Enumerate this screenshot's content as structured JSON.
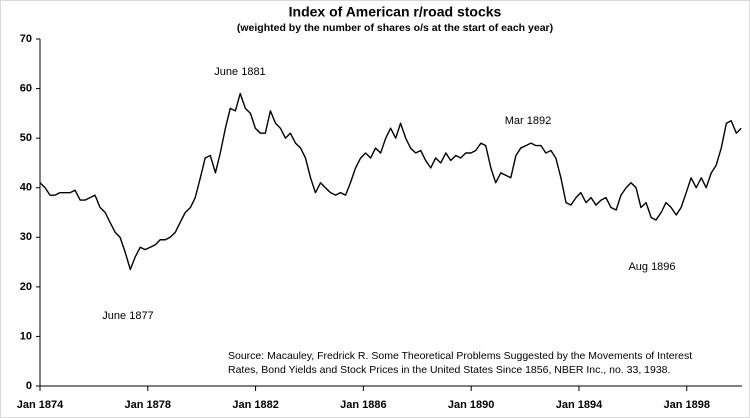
{
  "chart_data": {
    "type": "line",
    "title": "Index of American r/road stocks",
    "subtitle": "(weighted by the number of shares o/s at the start of each year)",
    "xlim": [
      1874,
      1900.05
    ],
    "xticks": [
      {
        "value": 1874,
        "label": "Jan 1874"
      },
      {
        "value": 1878,
        "label": "Jan 1878"
      },
      {
        "value": 1882,
        "label": "Jan 1882"
      },
      {
        "value": 1886,
        "label": "Jan 1886"
      },
      {
        "value": 1890,
        "label": "Jan 1890"
      },
      {
        "value": 1894,
        "label": "Jan 1894"
      },
      {
        "value": 1898,
        "label": "Jan 1898"
      }
    ],
    "ylim": [
      0,
      70
    ],
    "yticks": [
      0,
      10,
      20,
      30,
      40,
      50,
      60,
      70
    ],
    "grid": false,
    "x": [
      1874.0,
      1874.19,
      1874.37,
      1874.56,
      1874.74,
      1874.93,
      1875.12,
      1875.3,
      1875.49,
      1875.67,
      1875.86,
      1876.04,
      1876.23,
      1876.42,
      1876.6,
      1876.79,
      1876.97,
      1877.16,
      1877.35,
      1877.53,
      1877.72,
      1877.9,
      1878.09,
      1878.28,
      1878.46,
      1878.65,
      1878.83,
      1879.02,
      1879.2,
      1879.39,
      1879.58,
      1879.76,
      1879.95,
      1880.13,
      1880.32,
      1880.51,
      1880.69,
      1880.88,
      1881.06,
      1881.25,
      1881.43,
      1881.62,
      1881.81,
      1881.99,
      1882.18,
      1882.36,
      1882.55,
      1882.74,
      1882.92,
      1883.11,
      1883.29,
      1883.48,
      1883.67,
      1883.85,
      1884.04,
      1884.22,
      1884.41,
      1884.59,
      1884.78,
      1884.97,
      1885.15,
      1885.34,
      1885.52,
      1885.71,
      1885.9,
      1886.08,
      1886.27,
      1886.45,
      1886.64,
      1886.83,
      1887.01,
      1887.2,
      1887.38,
      1887.57,
      1887.75,
      1887.94,
      1888.13,
      1888.31,
      1888.5,
      1888.68,
      1888.87,
      1889.06,
      1889.24,
      1889.43,
      1889.61,
      1889.8,
      1889.99,
      1890.17,
      1890.36,
      1890.54,
      1890.73,
      1890.91,
      1891.1,
      1891.29,
      1891.47,
      1891.66,
      1891.84,
      1892.03,
      1892.22,
      1892.4,
      1892.59,
      1892.77,
      1892.96,
      1893.14,
      1893.33,
      1893.52,
      1893.7,
      1893.89,
      1894.07,
      1894.26,
      1894.45,
      1894.63,
      1894.82,
      1895.0,
      1895.19,
      1895.38,
      1895.56,
      1895.75,
      1895.93,
      1896.12,
      1896.3,
      1896.49,
      1896.68,
      1896.86,
      1897.05,
      1897.23,
      1897.42,
      1897.61,
      1897.79,
      1897.98,
      1898.16,
      1898.35,
      1898.54,
      1898.72,
      1898.91,
      1899.09,
      1899.28,
      1899.47,
      1899.65,
      1899.84,
      1900.02
    ],
    "series": [
      {
        "color": "#000000",
        "values": [
          41,
          40,
          38.5,
          38.5,
          39,
          39,
          39,
          39.5,
          37.5,
          37.5,
          38,
          38.5,
          36,
          35,
          33,
          31,
          30,
          27,
          23.5,
          26,
          28,
          27.5,
          28,
          28.5,
          29.5,
          29.5,
          30,
          31,
          33,
          35,
          36,
          38,
          42,
          46,
          46.5,
          43,
          47,
          52,
          56,
          55.5,
          59,
          56,
          55,
          52,
          51,
          51,
          55.5,
          53,
          52,
          50,
          51,
          49,
          48,
          46,
          42,
          39,
          41,
          40,
          39,
          38.5,
          39,
          38.5,
          41,
          44,
          46,
          47,
          46,
          48,
          47,
          50,
          52,
          50,
          53,
          50,
          48,
          47,
          47.5,
          45.5,
          44,
          46,
          45,
          47,
          45.5,
          46.5,
          46,
          47,
          47,
          47.5,
          49,
          48.5,
          44,
          41,
          43,
          42.5,
          42,
          46.5,
          48,
          48.5,
          49,
          48.5,
          48.5,
          47,
          47.5,
          46,
          42,
          37,
          36.5,
          38,
          39,
          37,
          38,
          36.5,
          37.5,
          38,
          36,
          35.5,
          38.5,
          40,
          41,
          40,
          36,
          37,
          34,
          33.5,
          35,
          37,
          36,
          34.5,
          36,
          39,
          42,
          40,
          42,
          40,
          43,
          44.5,
          48,
          53,
          53.5,
          51,
          52
        ]
      }
    ],
    "annotations": [
      "June 1881",
      "June 1877",
      "Mar 1892",
      "Aug 1896"
    ],
    "source": [
      "Source: Macauley, Fredrick R. Some Theoretical Problems Suggested by the Movements of Interest",
      "Rates, Bond Yields and Stock Prices in the United States Since 1856, NBER Inc., no. 33, 1938."
    ]
  }
}
